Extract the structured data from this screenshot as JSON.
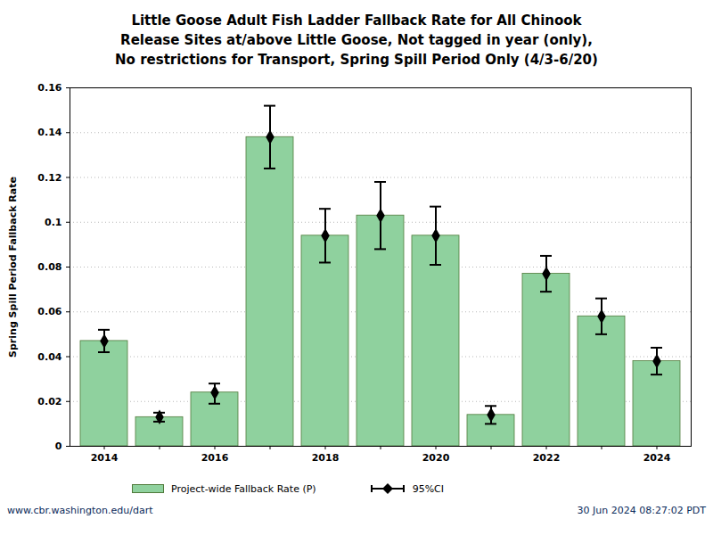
{
  "chart_data": {
    "type": "bar",
    "title": [
      "Little Goose Adult Fish Ladder Fallback Rate for All Chinook",
      "Release Sites at/above Little Goose, Not tagged in year (only),",
      "No restrictions for Transport, Spring Spill Period Only (4/3-6/20)"
    ],
    "y_label": "Spring Spill Period Fallback Rate",
    "categories": [
      "2014",
      null,
      "2016",
      null,
      "2018",
      null,
      "2020",
      null,
      "2022",
      null,
      "2024"
    ],
    "series": [
      {
        "name": "Project-wide Fallback Rate (P)",
        "color": "#8fd19e",
        "values": [
          0.047,
          0.013,
          0.024,
          0.138,
          0.094,
          0.103,
          0.094,
          0.014,
          0.077,
          0.058,
          0.038
        ]
      }
    ],
    "error_bars": {
      "name": "95%CI",
      "color": "#000000",
      "marker": "diamond",
      "low": [
        0.042,
        0.011,
        0.019,
        0.124,
        0.082,
        0.088,
        0.081,
        0.01,
        0.069,
        0.05,
        0.032
      ],
      "high": [
        0.052,
        0.015,
        0.028,
        0.152,
        0.106,
        0.118,
        0.107,
        0.018,
        0.085,
        0.066,
        0.044
      ]
    },
    "ylim": [
      0,
      0.16
    ],
    "yticks": [
      0,
      0.02,
      0.04,
      0.06,
      0.08,
      0.1,
      0.12,
      0.14,
      0.16
    ],
    "grid": true,
    "legend": "bottom",
    "footer": [
      "www.cbr.washington.edu/dart",
      "30 Jun 2024 08:27:02 PDT"
    ]
  }
}
